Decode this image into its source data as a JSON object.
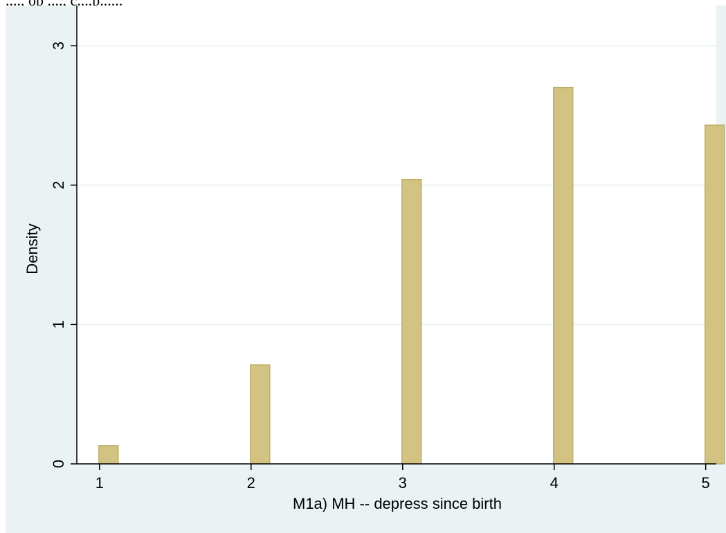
{
  "header_fragment": "...., op ...., c....p......",
  "chart_data": {
    "type": "bar",
    "title": "",
    "xlabel": "M1a) MH -- depress since birth",
    "ylabel": "Density",
    "x": [
      1,
      2,
      3,
      4,
      5
    ],
    "values": [
      0.13,
      0.71,
      2.04,
      2.7,
      2.43
    ],
    "xlim": [
      0.85,
      5.07
    ],
    "ylim": [
      0,
      3.08
    ],
    "xticks": [
      "1",
      "2",
      "3",
      "4",
      "5"
    ],
    "yticks": [
      "0",
      "1",
      "2",
      "3"
    ],
    "grid": true,
    "colors": {
      "panel_background": "#eaf2f3",
      "plot_background": "#ffffff",
      "bar_fill": "#d2c382",
      "bar_stroke": "#bfae68",
      "gridline": "#e6eef0",
      "axis": "#000000"
    }
  }
}
